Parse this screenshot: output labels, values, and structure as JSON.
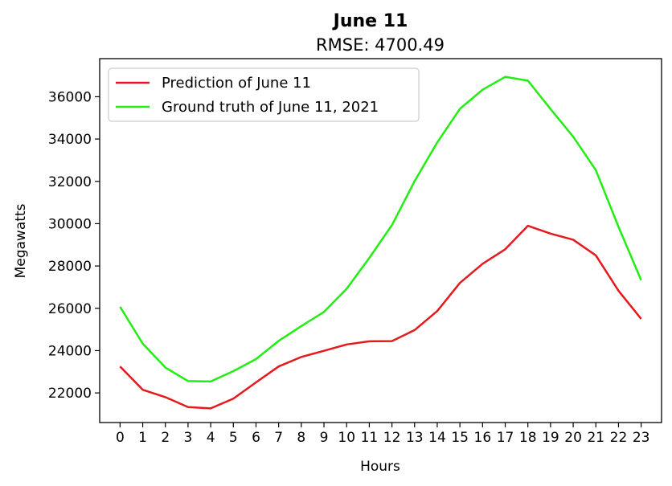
{
  "chart_data": {
    "type": "line",
    "title": "June 11",
    "subtitle": "RMSE: 4700.49",
    "xlabel": "Hours",
    "ylabel": "Megawatts",
    "x": [
      0,
      1,
      2,
      3,
      4,
      5,
      6,
      7,
      8,
      9,
      10,
      11,
      12,
      13,
      14,
      15,
      16,
      17,
      18,
      19,
      20,
      21,
      22,
      23
    ],
    "x_tick_labels": [
      "0",
      "1",
      "2",
      "3",
      "4",
      "5",
      "6",
      "7",
      "8",
      "9",
      "10",
      "11",
      "12",
      "13",
      "14",
      "15",
      "16",
      "17",
      "18",
      "19",
      "20",
      "21",
      "22",
      "23"
    ],
    "y_ticks": [
      22000,
      24000,
      26000,
      28000,
      30000,
      32000,
      34000,
      36000
    ],
    "y_tick_labels": [
      "22000",
      "24000",
      "26000",
      "28000",
      "30000",
      "32000",
      "34000",
      "36000"
    ],
    "xlim": [
      -0.9,
      23.9
    ],
    "ylim": [
      20600,
      37800
    ],
    "grid": false,
    "legend_position": "top-left",
    "series": [
      {
        "name": "Prediction of June 11",
        "color": "#e41a1c",
        "values": [
          23250,
          22150,
          21800,
          21330,
          21270,
          21730,
          22500,
          23250,
          23700,
          23990,
          24290,
          24440,
          24450,
          24970,
          25870,
          27200,
          28100,
          28790,
          29900,
          29530,
          29240,
          28500,
          26830,
          25500
        ]
      },
      {
        "name": "Ground truth of June 11, 2021",
        "color": "#22ee11",
        "values": [
          26070,
          24330,
          23200,
          22560,
          22540,
          23030,
          23600,
          24460,
          25160,
          25830,
          26920,
          28380,
          29930,
          32010,
          33840,
          35430,
          36330,
          36940,
          36760,
          35420,
          34110,
          32530,
          29850,
          27330
        ]
      }
    ]
  }
}
